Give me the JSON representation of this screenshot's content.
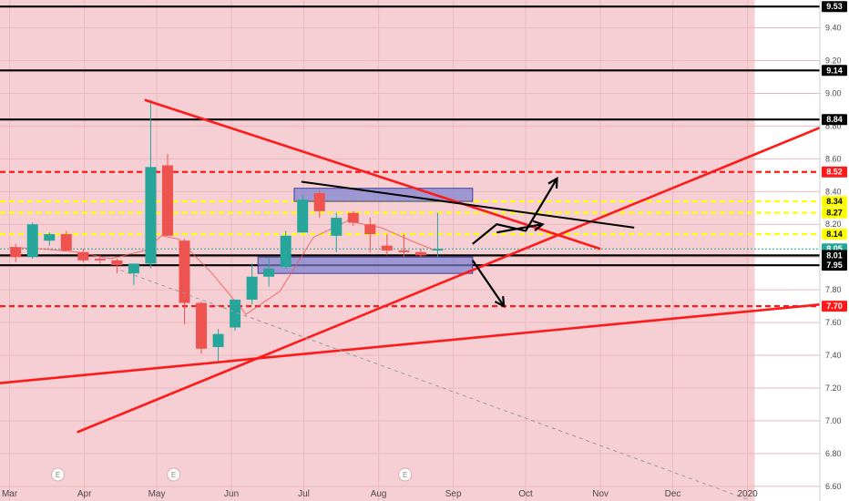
{
  "chart_data": {
    "type": "candlestick",
    "y_range": [
      6.51,
      9.57
    ],
    "x_range": [
      "2019-02-25",
      "2020-01-31"
    ],
    "y_ticks": [
      9.4,
      9.2,
      9.0,
      8.8,
      8.6,
      8.4,
      8.2,
      8.0,
      7.8,
      7.6,
      7.4,
      7.2,
      7.0,
      6.8,
      6.6
    ],
    "y_tick_labels": [
      "9.40",
      "9.20",
      "9.00",
      "8.80",
      "8.60",
      "8.40",
      "8.20",
      "8.00",
      "7.80",
      "7.60",
      "7.40",
      "7.20",
      "7.00",
      "6.80",
      "6.60"
    ],
    "x_ticks": [
      {
        "date": "2019-03-01",
        "label": "Mar"
      },
      {
        "date": "2019-04-01",
        "label": "Apr"
      },
      {
        "date": "2019-05-01",
        "label": "May"
      },
      {
        "date": "2019-06-01",
        "label": "Jun"
      },
      {
        "date": "2019-07-01",
        "label": "Jul"
      },
      {
        "date": "2019-08-01",
        "label": "Aug"
      },
      {
        "date": "2019-09-01",
        "label": "Sep"
      },
      {
        "date": "2019-10-01",
        "label": "Oct"
      },
      {
        "date": "2019-11-01",
        "label": "Nov"
      },
      {
        "date": "2019-12-01",
        "label": "Dec"
      },
      {
        "date": "2020-01-01",
        "label": "2020"
      }
    ],
    "shaded_region": {
      "from": "2019-02-25",
      "to": "2020-01-04",
      "color": "#f5cfd3"
    },
    "candles": [
      {
        "date": "2019-03-01",
        "open": 8.06,
        "high": 8.08,
        "low": 7.97,
        "close": 8.0
      },
      {
        "date": "2019-03-08",
        "open": 8.0,
        "high": 8.21,
        "low": 7.99,
        "close": 8.2
      },
      {
        "date": "2019-03-15",
        "open": 8.1,
        "high": 8.15,
        "low": 8.07,
        "close": 8.14
      },
      {
        "date": "2019-03-22",
        "open": 8.14,
        "high": 8.16,
        "low": 8.04,
        "close": 8.04
      },
      {
        "date": "2019-03-29",
        "open": 8.03,
        "high": 8.05,
        "low": 7.97,
        "close": 7.98
      },
      {
        "date": "2019-04-05",
        "open": 7.99,
        "high": 8.01,
        "low": 7.96,
        "close": 7.98
      },
      {
        "date": "2019-04-12",
        "open": 7.98,
        "high": 7.99,
        "low": 7.9,
        "close": 7.95
      },
      {
        "date": "2019-04-19",
        "open": 7.9,
        "high": 7.96,
        "low": 7.83,
        "close": 7.96
      },
      {
        "date": "2019-04-26",
        "open": 7.96,
        "high": 8.96,
        "low": 7.93,
        "close": 8.55
      },
      {
        "date": "2019-05-03",
        "open": 8.56,
        "high": 8.63,
        "low": 8.13,
        "close": 8.13
      },
      {
        "date": "2019-05-10",
        "open": 8.1,
        "high": 8.11,
        "low": 7.59,
        "close": 7.72
      },
      {
        "date": "2019-05-17",
        "open": 7.72,
        "high": 7.73,
        "low": 7.41,
        "close": 7.44
      },
      {
        "date": "2019-05-24",
        "open": 7.45,
        "high": 7.56,
        "low": 7.36,
        "close": 7.53
      },
      {
        "date": "2019-05-31",
        "open": 7.57,
        "high": 7.74,
        "low": 7.55,
        "close": 7.74
      },
      {
        "date": "2019-06-07",
        "open": 7.74,
        "high": 7.96,
        "low": 7.71,
        "close": 7.88
      },
      {
        "date": "2019-06-14",
        "open": 7.88,
        "high": 8.0,
        "low": 7.82,
        "close": 7.93
      },
      {
        "date": "2019-06-21",
        "open": 7.94,
        "high": 8.16,
        "low": 7.93,
        "close": 8.13
      },
      {
        "date": "2019-06-28",
        "open": 8.15,
        "high": 8.38,
        "low": 8.15,
        "close": 8.35
      },
      {
        "date": "2019-07-05",
        "open": 8.39,
        "high": 8.41,
        "low": 8.24,
        "close": 8.28
      },
      {
        "date": "2019-07-12",
        "open": 8.13,
        "high": 8.27,
        "low": 8.03,
        "close": 8.24
      },
      {
        "date": "2019-07-19",
        "open": 8.27,
        "high": 8.28,
        "low": 8.19,
        "close": 8.21
      },
      {
        "date": "2019-07-26",
        "open": 8.2,
        "high": 8.24,
        "low": 8.03,
        "close": 8.14
      },
      {
        "date": "2019-08-02",
        "open": 8.07,
        "high": 8.14,
        "low": 8.01,
        "close": 8.04
      },
      {
        "date": "2019-08-09",
        "open": 8.04,
        "high": 8.14,
        "low": 8.0,
        "close": 8.03
      },
      {
        "date": "2019-08-16",
        "open": 8.03,
        "high": 8.05,
        "low": 8.0,
        "close": 8.01
      },
      {
        "date": "2019-08-23",
        "open": 8.04,
        "high": 8.27,
        "low": 8.0,
        "close": 8.05
      }
    ],
    "moving_average": [
      {
        "date": "2019-03-01",
        "value": 8.06
      },
      {
        "date": "2019-03-15",
        "value": 8.05
      },
      {
        "date": "2019-03-29",
        "value": 8.03
      },
      {
        "date": "2019-04-12",
        "value": 7.99
      },
      {
        "date": "2019-04-26",
        "value": 8.04
      },
      {
        "date": "2019-05-03",
        "value": 8.13
      },
      {
        "date": "2019-05-10",
        "value": 8.11
      },
      {
        "date": "2019-05-24",
        "value": 7.9
      },
      {
        "date": "2019-06-07",
        "value": 7.65
      },
      {
        "date": "2019-06-21",
        "value": 7.79
      },
      {
        "date": "2019-07-05",
        "value": 8.12
      },
      {
        "date": "2019-07-19",
        "value": 8.22
      },
      {
        "date": "2019-08-02",
        "value": 8.18
      },
      {
        "date": "2019-08-16",
        "value": 8.09
      },
      {
        "date": "2019-08-23",
        "value": 8.05
      }
    ],
    "horizontal_levels": [
      {
        "value": 9.53,
        "label": "9.53",
        "style": "solid",
        "color": "#000000"
      },
      {
        "value": 9.14,
        "label": "9.14",
        "style": "solid",
        "color": "#000000"
      },
      {
        "value": 8.84,
        "label": "8.84",
        "style": "solid",
        "color": "#000000"
      },
      {
        "value": 8.52,
        "label": "8.52",
        "style": "dashed",
        "color": "#ff1a1a"
      },
      {
        "value": 8.34,
        "label": "8.34",
        "style": "dashed",
        "color": "#ffff00"
      },
      {
        "value": 8.27,
        "label": "8.27",
        "style": "dashed",
        "color": "#ffff00"
      },
      {
        "value": 8.14,
        "label": "8.14",
        "style": "dashed",
        "color": "#ffff00"
      },
      {
        "value": 8.05,
        "label": "8.05",
        "style": "dotted",
        "color": "#26a69a"
      },
      {
        "value": 8.01,
        "label": "8.01",
        "style": "solid",
        "color": "#000000"
      },
      {
        "value": 7.95,
        "label": "7.95",
        "style": "solid",
        "color": "#000000"
      },
      {
        "value": 7.7,
        "label": "7.70",
        "style": "dashed",
        "color": "#ff1a1a"
      }
    ],
    "trend_lines": [
      {
        "name": "",
        "from": {
          "date": "2019-04-26",
          "value": 8.96
        },
        "to": {
          "date": "2019-11-01",
          "value": 8.05
        },
        "color": "#ff1a1a"
      },
      {
        "name": "",
        "from": {
          "date": "2019-03-29",
          "value": 6.93
        },
        "to": {
          "date": "2020-01-31",
          "value": 8.79
        },
        "color": "#ff1a1a"
      },
      {
        "name": "",
        "from": {
          "date": "2019-02-25",
          "value": 7.23
        },
        "to": {
          "date": "2020-01-31",
          "value": 7.71
        },
        "color": "#ff1a1a"
      },
      {
        "name": "",
        "from": {
          "date": "2019-06-30",
          "value": 8.46
        },
        "to": {
          "date": "2019-11-15",
          "value": 8.18
        },
        "color": "#000000"
      },
      {
        "name": "",
        "from": {
          "date": "2019-04-16",
          "value": 7.92
        },
        "to": {
          "date": "2020-01-01",
          "value": 6.52
        },
        "color": "#999999"
      }
    ],
    "ranges": [
      {
        "from": "2019-06-27",
        "to": "2019-09-09",
        "top": 8.42,
        "bottom": 8.34
      },
      {
        "from": "2019-06-12",
        "to": "2019-09-09",
        "top": 8.0,
        "bottom": 7.9
      }
    ],
    "arrows": [
      {
        "points": [
          {
            "date": "2019-09-09",
            "value": 8.08
          },
          {
            "date": "2019-09-19",
            "value": 8.2
          },
          {
            "date": "2019-10-01",
            "value": 8.16
          },
          {
            "date": "2019-10-14",
            "value": 8.48
          }
        ]
      },
      {
        "points": [
          {
            "date": "2019-09-19",
            "value": 8.15
          },
          {
            "date": "2019-10-08",
            "value": 8.2
          }
        ]
      },
      {
        "points": [
          {
            "date": "2019-09-09",
            "value": 7.98
          },
          {
            "date": "2019-09-22",
            "value": 7.7
          }
        ]
      }
    ],
    "event_markers": [
      {
        "date": "2019-03-21",
        "label": "E"
      },
      {
        "date": "2019-05-08",
        "label": "E"
      },
      {
        "date": "2019-08-12",
        "label": "E"
      }
    ],
    "colors": {
      "up": "#26a69a",
      "down": "#ef5350",
      "moving_average": "#ef5350",
      "range_fill": "#7b7fd1",
      "range_edge": "#3f3f9a"
    }
  }
}
